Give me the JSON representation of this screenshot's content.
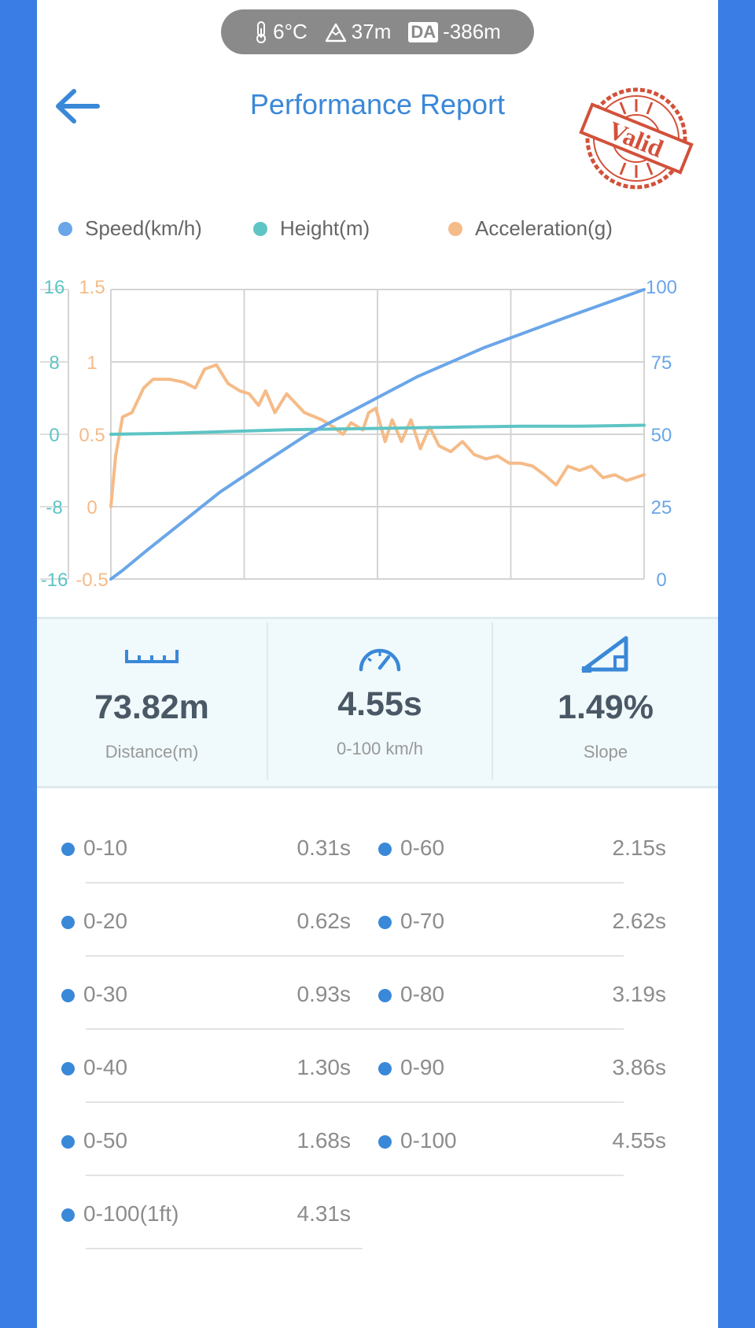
{
  "status": {
    "temperature": "6°C",
    "altitude": "37m",
    "da_label": "DA",
    "da_value": "-386m"
  },
  "header": {
    "title": "Performance Report",
    "stamp_text": "Valid"
  },
  "legend": [
    {
      "label": "Speed(km/h)",
      "color": "#6aa6e8"
    },
    {
      "label": "Height(m)",
      "color": "#5ec4c4"
    },
    {
      "label": "Acceleration(g)",
      "color": "#f5bb88"
    }
  ],
  "chart_data": {
    "type": "line",
    "height_axis": {
      "ticks": [
        "16",
        "8",
        "0",
        "-8",
        "-16"
      ],
      "ylim": [
        -16,
        16
      ],
      "color": "#5ec4c4"
    },
    "accel_axis": {
      "ticks": [
        "1.5",
        "1",
        "0.5",
        "0",
        "-0.5"
      ],
      "ylim": [
        -0.5,
        1.5
      ],
      "color": "#f5bb88"
    },
    "speed_axis": {
      "ticks": [
        "100",
        "75",
        "50",
        "25",
        "0"
      ],
      "ylim": [
        0,
        100
      ],
      "color": "#6aa6e8"
    },
    "x_range": [
      0,
      4.55
    ],
    "grid": true,
    "series": [
      {
        "name": "Speed(km/h)",
        "color": "#6aa6e8",
        "axis": "speed",
        "x": [
          0,
          0.1,
          0.31,
          0.62,
          0.93,
          1.3,
          1.68,
          2.15,
          2.62,
          3.19,
          3.86,
          4.55
        ],
        "y": [
          0,
          3,
          10,
          20,
          30,
          40,
          50,
          60,
          70,
          80,
          90,
          100
        ]
      },
      {
        "name": "Height(m)",
        "color": "#5ec4c4",
        "axis": "height",
        "x": [
          0,
          0.5,
          1.0,
          1.5,
          2.0,
          2.5,
          3.0,
          3.5,
          4.0,
          4.55
        ],
        "y": [
          0.0,
          0.1,
          0.3,
          0.5,
          0.6,
          0.7,
          0.8,
          0.9,
          0.9,
          1.0
        ]
      },
      {
        "name": "Acceleration(g)",
        "color": "#f5bb88",
        "axis": "accel",
        "x": [
          0,
          0.04,
          0.1,
          0.18,
          0.28,
          0.36,
          0.5,
          0.62,
          0.72,
          0.8,
          0.9,
          1.0,
          1.1,
          1.18,
          1.26,
          1.32,
          1.4,
          1.5,
          1.65,
          1.8,
          1.9,
          1.98,
          2.05,
          2.15,
          2.2,
          2.26,
          2.34,
          2.4,
          2.48,
          2.56,
          2.64,
          2.72,
          2.8,
          2.9,
          3.0,
          3.1,
          3.2,
          3.3,
          3.4,
          3.5,
          3.6,
          3.7,
          3.8,
          3.9,
          4.0,
          4.1,
          4.2,
          4.3,
          4.4,
          4.55
        ],
        "y": [
          0.0,
          0.35,
          0.62,
          0.65,
          0.82,
          0.88,
          0.88,
          0.86,
          0.82,
          0.95,
          0.98,
          0.85,
          0.8,
          0.78,
          0.7,
          0.8,
          0.65,
          0.78,
          0.65,
          0.6,
          0.55,
          0.5,
          0.58,
          0.53,
          0.65,
          0.68,
          0.45,
          0.6,
          0.45,
          0.6,
          0.4,
          0.55,
          0.42,
          0.38,
          0.45,
          0.36,
          0.33,
          0.35,
          0.3,
          0.3,
          0.28,
          0.22,
          0.15,
          0.28,
          0.25,
          0.28,
          0.2,
          0.22,
          0.18,
          0.22
        ]
      }
    ]
  },
  "stats": [
    {
      "icon": "ruler-icon",
      "value": "73.82m",
      "label": "Distance(m)"
    },
    {
      "icon": "speedometer-icon",
      "value": "4.55s",
      "label": "0-100 km/h"
    },
    {
      "icon": "slope-icon",
      "value": "1.49%",
      "label": "Slope"
    }
  ],
  "splits_left": [
    {
      "name": "0-10",
      "time": "0.31s"
    },
    {
      "name": "0-20",
      "time": "0.62s"
    },
    {
      "name": "0-30",
      "time": "0.93s"
    },
    {
      "name": "0-40",
      "time": "1.30s"
    },
    {
      "name": "0-50",
      "time": "1.68s"
    },
    {
      "name": "0-100(1ft)",
      "time": "4.31s"
    }
  ],
  "splits_right": [
    {
      "name": "0-60",
      "time": "2.15s"
    },
    {
      "name": "0-70",
      "time": "2.62s"
    },
    {
      "name": "0-80",
      "time": "3.19s"
    },
    {
      "name": "0-90",
      "time": "3.86s"
    },
    {
      "name": "0-100",
      "time": "4.55s"
    }
  ]
}
